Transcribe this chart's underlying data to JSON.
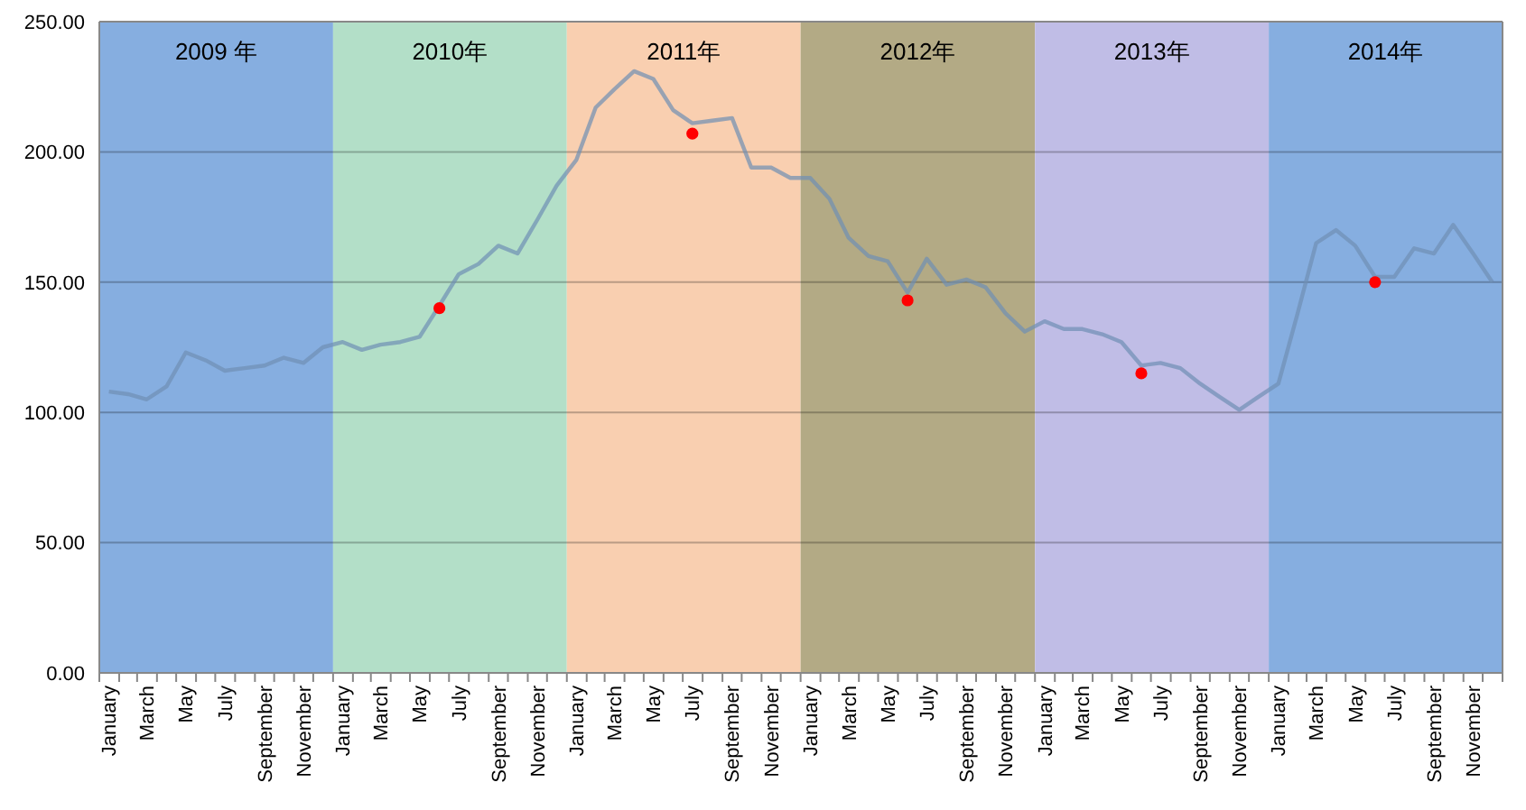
{
  "chart_data": {
    "type": "line",
    "x": [
      "2009-01-16",
      "2009-02-15",
      "2009-03-16",
      "2009-04-16",
      "2009-05-16",
      "2009-06-16",
      "2009-07-16",
      "2009-08-16",
      "2009-09-16",
      "2009-10-16",
      "2009-11-16",
      "2009-12-16",
      "2010-01-16",
      "2010-02-15",
      "2010-03-16",
      "2010-04-16",
      "2010-05-16",
      "2010-06-16",
      "2010-07-16",
      "2010-08-16",
      "2010-09-16",
      "2010-10-16",
      "2010-11-16",
      "2010-12-16",
      "2011-01-16",
      "2011-02-15",
      "2011-03-16",
      "2011-04-16",
      "2011-05-16",
      "2011-06-16",
      "2011-07-16",
      "2011-08-16",
      "2011-09-16",
      "2011-10-16",
      "2011-11-16",
      "2011-12-16",
      "2012-01-16",
      "2012-02-15",
      "2012-03-16",
      "2012-04-16",
      "2012-05-16",
      "2012-06-16",
      "2012-07-16",
      "2012-08-16",
      "2012-09-16",
      "2012-10-16",
      "2012-11-16",
      "2012-12-16",
      "2013-01-16",
      "2013-02-15",
      "2013-03-16",
      "2013-04-16",
      "2013-05-16",
      "2013-06-16",
      "2013-07-16",
      "2013-08-16",
      "2013-09-16",
      "2013-10-16",
      "2013-11-16",
      "2013-12-16",
      "2014-01-16",
      "2014-02-15",
      "2014-03-16",
      "2014-04-16",
      "2014-05-16",
      "2014-06-16",
      "2014-07-16",
      "2014-08-16",
      "2014-09-16",
      "2014-10-16",
      "2014-11-16",
      "2014-12-16"
    ],
    "series": [
      {
        "color": "#6f8fb3",
        "values": [
          108,
          107,
          105,
          110,
          123,
          120,
          116,
          117,
          118,
          121,
          119,
          125,
          127,
          124,
          126,
          127,
          129,
          141,
          153,
          157,
          164,
          161,
          174,
          187,
          197,
          217,
          224,
          231,
          228,
          216,
          211,
          212,
          213,
          194,
          194,
          190,
          190,
          182,
          167,
          160,
          158,
          146,
          159,
          149,
          151,
          148,
          138,
          131,
          135,
          132,
          132,
          130,
          127,
          118,
          119,
          117,
          111,
          106,
          101,
          106,
          111,
          138,
          165,
          170,
          164,
          152,
          152,
          163,
          161,
          172,
          161,
          150
        ]
      },
      {
        "type": "scatter",
        "color": "#ff0000",
        "marker": "circle",
        "values": [
          null,
          null,
          null,
          null,
          null,
          null,
          null,
          null,
          null,
          null,
          null,
          null,
          null,
          null,
          null,
          null,
          null,
          140,
          null,
          null,
          null,
          null,
          null,
          null,
          null,
          null,
          null,
          null,
          null,
          null,
          207,
          null,
          null,
          null,
          null,
          null,
          null,
          null,
          null,
          null,
          null,
          143,
          null,
          null,
          null,
          null,
          null,
          null,
          null,
          null,
          null,
          null,
          null,
          115,
          null,
          null,
          null,
          null,
          null,
          null,
          null,
          null,
          null,
          null,
          null,
          150,
          null,
          null,
          null,
          null,
          null,
          null
        ]
      }
    ],
    "xlim": [
      "2009-01-01",
      "2015-01-01"
    ],
    "xticks": [
      {
        "value": "2009-01-16",
        "label": "January"
      },
      {
        "value": "2009-03-16",
        "label": "March"
      },
      {
        "value": "2009-05-16",
        "label": "May"
      },
      {
        "value": "2009-07-16",
        "label": "July"
      },
      {
        "value": "2009-09-16",
        "label": "September"
      },
      {
        "value": "2009-11-16",
        "label": "November"
      },
      {
        "value": "2010-01-16",
        "label": "January"
      },
      {
        "value": "2010-03-16",
        "label": "March"
      },
      {
        "value": "2010-05-16",
        "label": "May"
      },
      {
        "value": "2010-07-16",
        "label": "July"
      },
      {
        "value": "2010-09-16",
        "label": "September"
      },
      {
        "value": "2010-11-16",
        "label": "November"
      },
      {
        "value": "2011-01-16",
        "label": "January"
      },
      {
        "value": "2011-03-16",
        "label": "March"
      },
      {
        "value": "2011-05-16",
        "label": "May"
      },
      {
        "value": "2011-07-16",
        "label": "July"
      },
      {
        "value": "2011-09-16",
        "label": "September"
      },
      {
        "value": "2011-11-16",
        "label": "November"
      },
      {
        "value": "2012-01-16",
        "label": "January"
      },
      {
        "value": "2012-03-16",
        "label": "March"
      },
      {
        "value": "2012-05-16",
        "label": "May"
      },
      {
        "value": "2012-07-16",
        "label": "July"
      },
      {
        "value": "2012-09-16",
        "label": "September"
      },
      {
        "value": "2012-11-16",
        "label": "November"
      },
      {
        "value": "2013-01-16",
        "label": "January"
      },
      {
        "value": "2013-03-16",
        "label": "March"
      },
      {
        "value": "2013-05-16",
        "label": "May"
      },
      {
        "value": "2013-07-16",
        "label": "July"
      },
      {
        "value": "2013-09-16",
        "label": "September"
      },
      {
        "value": "2013-11-16",
        "label": "November"
      },
      {
        "value": "2014-01-16",
        "label": "January"
      },
      {
        "value": "2014-03-16",
        "label": "March"
      },
      {
        "value": "2014-05-16",
        "label": "May"
      },
      {
        "value": "2014-07-16",
        "label": "July"
      },
      {
        "value": "2014-09-16",
        "label": "September"
      },
      {
        "value": "2014-11-16",
        "label": "November"
      }
    ],
    "ylim": [
      0,
      250
    ],
    "yticks": [
      {
        "value": 0,
        "label": "0.00"
      },
      {
        "value": 50,
        "label": "50.00"
      },
      {
        "value": 100,
        "label": "100.00"
      },
      {
        "value": 150,
        "label": "150.00"
      },
      {
        "value": 200,
        "label": "200.00"
      },
      {
        "value": 250,
        "label": "250.00"
      }
    ],
    "grid": "y",
    "bands": [
      {
        "axis": "x",
        "from": "2009-01-01",
        "to": "2010-01-01",
        "label": "2009 年",
        "color": "#86aee0"
      },
      {
        "axis": "x",
        "from": "2010-01-01",
        "to": "2011-01-01",
        "label": "2010年",
        "color": "#b3dfc8"
      },
      {
        "axis": "x",
        "from": "2011-01-01",
        "to": "2012-01-01",
        "label": "2011年",
        "color": "#f9cfb0"
      },
      {
        "axis": "x",
        "from": "2012-01-01",
        "to": "2013-01-01",
        "label": "2012年",
        "color": "#b3aa85"
      },
      {
        "axis": "x",
        "from": "2013-01-01",
        "to": "2014-01-01",
        "label": "2013年",
        "color": "#c0bde6"
      },
      {
        "axis": "x",
        "from": "2014-01-01",
        "to": "2015-01-01",
        "label": "2014年",
        "color": "#86aee0"
      }
    ]
  }
}
